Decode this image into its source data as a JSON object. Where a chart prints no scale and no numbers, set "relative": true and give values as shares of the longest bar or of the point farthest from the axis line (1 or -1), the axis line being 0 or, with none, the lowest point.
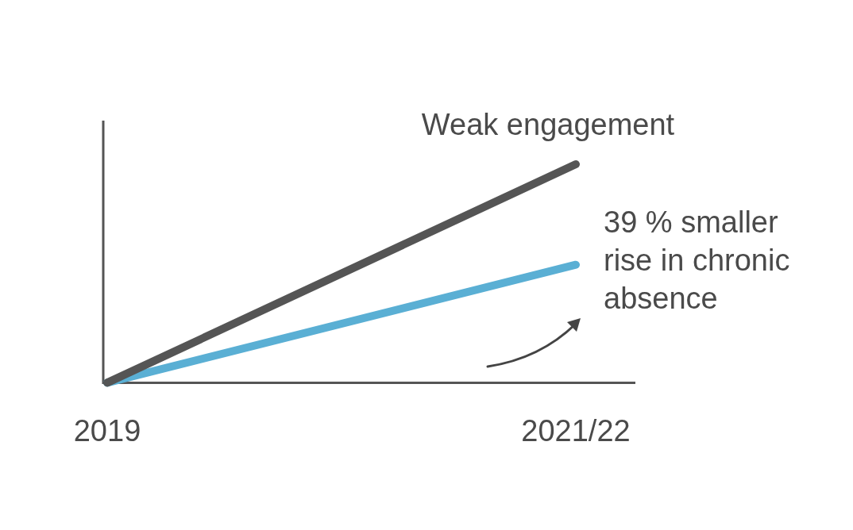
{
  "chart_data": {
    "type": "line",
    "relative": true,
    "categories": [
      "2019",
      "2021/22"
    ],
    "series": [
      {
        "name": "Weak engagement",
        "color": "#555555",
        "values": [
          0,
          1
        ]
      },
      {
        "color": "#5aafd4",
        "values": [
          0,
          0.54
        ]
      }
    ],
    "annotations": [
      {
        "text": "39 % smaller rise in chronic absence",
        "x": "2021/22",
        "y": 0.54
      }
    ],
    "grid": false,
    "legend": false,
    "marker": "none",
    "line_style": "solid"
  }
}
